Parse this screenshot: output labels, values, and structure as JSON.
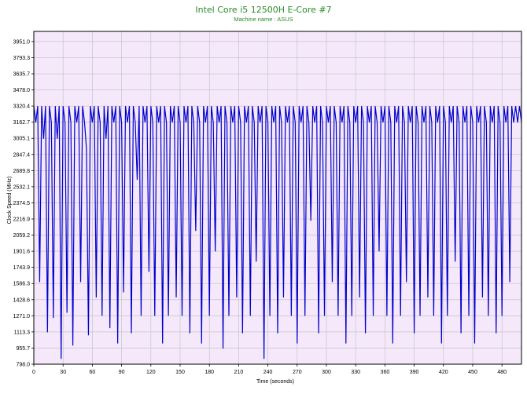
{
  "chart_data": {
    "type": "line",
    "title": "Intel Core i5 12500H E-Core #7",
    "subtitle": "Machine name : ASUS",
    "xlabel": "Time (seconds)",
    "ylabel": "Clock Speed (MHz)",
    "xlim": [
      0,
      500
    ],
    "ylim": [
      798.0,
      4050
    ],
    "x_ticks": [
      "0",
      "30",
      "60",
      "90",
      "120",
      "150",
      "180",
      "210",
      "240",
      "270",
      "300",
      "330",
      "360",
      "390",
      "420",
      "450",
      "480"
    ],
    "y_ticks": [
      "798.0",
      "955.7",
      "1113.3",
      "1271.0",
      "1428.6",
      "1586.3",
      "1743.9",
      "1901.6",
      "2059.2",
      "2216.9",
      "2374.5",
      "2532.1",
      "2689.8",
      "2847.4",
      "3005.1",
      "3162.7",
      "3320.4",
      "3478.0",
      "3635.7",
      "3793.3",
      "3951.0"
    ],
    "grid": true,
    "series": [
      {
        "values": [
          [
            0,
            3320
          ],
          [
            2,
            3160
          ],
          [
            4,
            3320
          ],
          [
            6,
            1600
          ],
          [
            8,
            3320
          ],
          [
            10,
            3000
          ],
          [
            12,
            3320
          ],
          [
            14,
            1110
          ],
          [
            16,
            3320
          ],
          [
            18,
            3160
          ],
          [
            20,
            1250
          ],
          [
            22,
            3320
          ],
          [
            24,
            3000
          ],
          [
            26,
            3320
          ],
          [
            28,
            850
          ],
          [
            30,
            3320
          ],
          [
            32,
            3160
          ],
          [
            34,
            1300
          ],
          [
            36,
            3320
          ],
          [
            38,
            3160
          ],
          [
            40,
            980
          ],
          [
            42,
            3320
          ],
          [
            44,
            3160
          ],
          [
            46,
            3320
          ],
          [
            48,
            1600
          ],
          [
            50,
            3320
          ],
          [
            52,
            3160
          ],
          [
            54,
            2900
          ],
          [
            56,
            1080
          ],
          [
            58,
            3320
          ],
          [
            60,
            3160
          ],
          [
            62,
            3320
          ],
          [
            64,
            1450
          ],
          [
            66,
            3320
          ],
          [
            68,
            3160
          ],
          [
            70,
            1270
          ],
          [
            72,
            3320
          ],
          [
            74,
            3000
          ],
          [
            76,
            3320
          ],
          [
            78,
            1150
          ],
          [
            80,
            3320
          ],
          [
            82,
            3160
          ],
          [
            84,
            3320
          ],
          [
            86,
            1000
          ],
          [
            88,
            3320
          ],
          [
            90,
            3160
          ],
          [
            92,
            1500
          ],
          [
            94,
            3320
          ],
          [
            96,
            3160
          ],
          [
            98,
            3320
          ],
          [
            100,
            1100
          ],
          [
            102,
            3320
          ],
          [
            104,
            3160
          ],
          [
            106,
            2600
          ],
          [
            108,
            3320
          ],
          [
            110,
            1270
          ],
          [
            112,
            3320
          ],
          [
            114,
            3160
          ],
          [
            116,
            3320
          ],
          [
            118,
            1700
          ],
          [
            120,
            3320
          ],
          [
            122,
            3160
          ],
          [
            124,
            1270
          ],
          [
            126,
            3320
          ],
          [
            128,
            3160
          ],
          [
            130,
            3320
          ],
          [
            132,
            1000
          ],
          [
            134,
            3320
          ],
          [
            136,
            3160
          ],
          [
            138,
            1270
          ],
          [
            140,
            3320
          ],
          [
            142,
            3160
          ],
          [
            144,
            3320
          ],
          [
            146,
            1450
          ],
          [
            148,
            3320
          ],
          [
            150,
            3160
          ],
          [
            152,
            1270
          ],
          [
            154,
            3320
          ],
          [
            156,
            3160
          ],
          [
            158,
            3320
          ],
          [
            160,
            1100
          ],
          [
            162,
            3320
          ],
          [
            164,
            3160
          ],
          [
            166,
            2100
          ],
          [
            168,
            3320
          ],
          [
            170,
            3160
          ],
          [
            172,
            1000
          ],
          [
            174,
            3320
          ],
          [
            176,
            3160
          ],
          [
            178,
            3320
          ],
          [
            180,
            1270
          ],
          [
            182,
            3320
          ],
          [
            184,
            3160
          ],
          [
            186,
            1900
          ],
          [
            188,
            3320
          ],
          [
            190,
            3160
          ],
          [
            192,
            3320
          ],
          [
            194,
            950
          ],
          [
            196,
            3320
          ],
          [
            198,
            3160
          ],
          [
            200,
            1270
          ],
          [
            202,
            3320
          ],
          [
            204,
            3160
          ],
          [
            206,
            3320
          ],
          [
            208,
            1450
          ],
          [
            210,
            3320
          ],
          [
            212,
            3160
          ],
          [
            214,
            1100
          ],
          [
            216,
            3320
          ],
          [
            218,
            3160
          ],
          [
            220,
            3320
          ],
          [
            222,
            1270
          ],
          [
            224,
            3320
          ],
          [
            226,
            3160
          ],
          [
            228,
            1800
          ],
          [
            230,
            3320
          ],
          [
            232,
            3160
          ],
          [
            234,
            3320
          ],
          [
            236,
            850
          ],
          [
            238,
            3320
          ],
          [
            240,
            3160
          ],
          [
            242,
            1270
          ],
          [
            244,
            3320
          ],
          [
            246,
            3160
          ],
          [
            248,
            3320
          ],
          [
            250,
            1100
          ],
          [
            252,
            3320
          ],
          [
            254,
            3160
          ],
          [
            256,
            1450
          ],
          [
            258,
            3320
          ],
          [
            260,
            3160
          ],
          [
            262,
            3320
          ],
          [
            264,
            1270
          ],
          [
            266,
            3320
          ],
          [
            268,
            3160
          ],
          [
            270,
            1000
          ],
          [
            272,
            3320
          ],
          [
            274,
            3160
          ],
          [
            276,
            3320
          ],
          [
            278,
            1270
          ],
          [
            280,
            3320
          ],
          [
            282,
            3160
          ],
          [
            284,
            2200
          ],
          [
            286,
            3320
          ],
          [
            288,
            3160
          ],
          [
            290,
            3320
          ],
          [
            292,
            1100
          ],
          [
            294,
            3320
          ],
          [
            296,
            3160
          ],
          [
            298,
            1270
          ],
          [
            300,
            3320
          ],
          [
            302,
            3160
          ],
          [
            304,
            3320
          ],
          [
            306,
            1600
          ],
          [
            308,
            3320
          ],
          [
            310,
            3160
          ],
          [
            312,
            1270
          ],
          [
            314,
            3320
          ],
          [
            316,
            3160
          ],
          [
            318,
            3320
          ],
          [
            320,
            1000
          ],
          [
            322,
            3320
          ],
          [
            324,
            3160
          ],
          [
            326,
            1270
          ],
          [
            328,
            3320
          ],
          [
            330,
            3160
          ],
          [
            332,
            3320
          ],
          [
            334,
            1450
          ],
          [
            336,
            3320
          ],
          [
            338,
            3160
          ],
          [
            340,
            1100
          ],
          [
            342,
            3320
          ],
          [
            344,
            3160
          ],
          [
            346,
            3320
          ],
          [
            348,
            1270
          ],
          [
            350,
            3320
          ],
          [
            352,
            3160
          ],
          [
            354,
            1900
          ],
          [
            356,
            3320
          ],
          [
            358,
            3160
          ],
          [
            360,
            3320
          ],
          [
            362,
            1270
          ],
          [
            364,
            3320
          ],
          [
            366,
            3160
          ],
          [
            368,
            1000
          ],
          [
            370,
            3320
          ],
          [
            372,
            3160
          ],
          [
            374,
            3320
          ],
          [
            376,
            1270
          ],
          [
            378,
            3320
          ],
          [
            380,
            3160
          ],
          [
            382,
            1600
          ],
          [
            384,
            3320
          ],
          [
            386,
            3160
          ],
          [
            388,
            3320
          ],
          [
            390,
            1100
          ],
          [
            392,
            3320
          ],
          [
            394,
            3160
          ],
          [
            396,
            1270
          ],
          [
            398,
            3320
          ],
          [
            400,
            3160
          ],
          [
            402,
            3320
          ],
          [
            404,
            1450
          ],
          [
            406,
            3320
          ],
          [
            408,
            3160
          ],
          [
            410,
            1270
          ],
          [
            412,
            3320
          ],
          [
            414,
            3160
          ],
          [
            416,
            3320
          ],
          [
            418,
            1000
          ],
          [
            420,
            3320
          ],
          [
            422,
            3160
          ],
          [
            424,
            1270
          ],
          [
            426,
            3320
          ],
          [
            428,
            3160
          ],
          [
            430,
            3320
          ],
          [
            432,
            1800
          ],
          [
            434,
            3320
          ],
          [
            436,
            3160
          ],
          [
            438,
            1100
          ],
          [
            440,
            3320
          ],
          [
            442,
            3160
          ],
          [
            444,
            3320
          ],
          [
            446,
            1270
          ],
          [
            448,
            3320
          ],
          [
            450,
            3160
          ],
          [
            452,
            1000
          ],
          [
            454,
            3320
          ],
          [
            456,
            3160
          ],
          [
            458,
            3320
          ],
          [
            460,
            1450
          ],
          [
            462,
            3320
          ],
          [
            464,
            3160
          ],
          [
            466,
            1270
          ],
          [
            468,
            3320
          ],
          [
            470,
            3160
          ],
          [
            472,
            3320
          ],
          [
            474,
            1100
          ],
          [
            476,
            3320
          ],
          [
            478,
            3160
          ],
          [
            480,
            1270
          ],
          [
            482,
            3320
          ],
          [
            484,
            3160
          ],
          [
            486,
            3320
          ],
          [
            488,
            1600
          ],
          [
            490,
            3320
          ],
          [
            492,
            3160
          ],
          [
            494,
            3320
          ],
          [
            496,
            3160
          ],
          [
            498,
            3320
          ],
          [
            500,
            3160
          ]
        ]
      }
    ]
  },
  "colors": {
    "plot_background": "#f5e8fa",
    "grid": "#bfbfbf",
    "line": "#0000cc",
    "title": "#2a8a2a"
  }
}
